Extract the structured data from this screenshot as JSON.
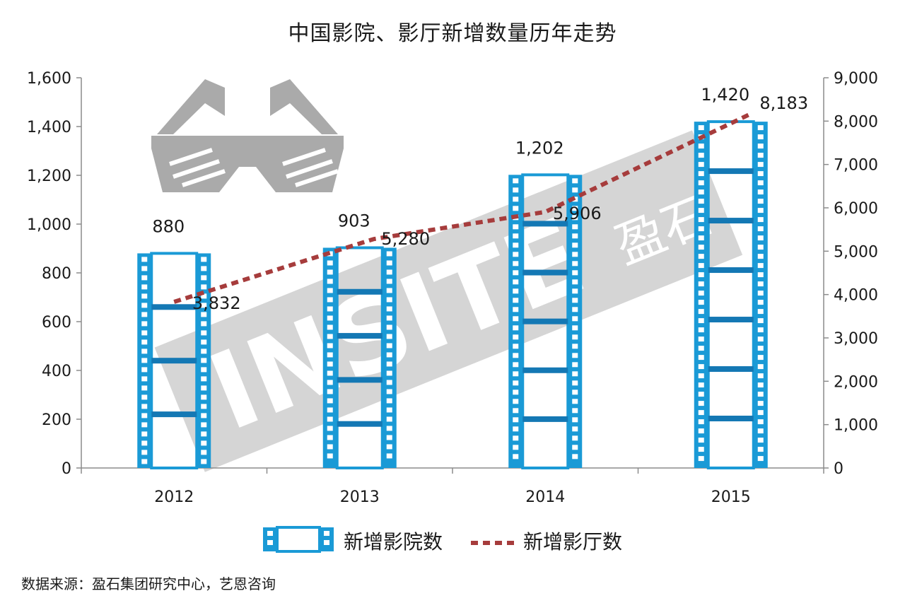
{
  "chart_data": {
    "type": "bar",
    "title": "中国影院、影厅新增数量历年走势",
    "categories": [
      "2012",
      "2013",
      "2014",
      "2015"
    ],
    "series": [
      {
        "name": "新增影院数",
        "type": "bar",
        "axis": "left",
        "values": [
          880,
          903,
          1202,
          1420
        ],
        "labels": [
          "880",
          "903",
          "1,202",
          "1,420"
        ]
      },
      {
        "name": "新增影厅数",
        "type": "line",
        "axis": "right",
        "values": [
          3832,
          5280,
          5906,
          8183
        ],
        "labels": [
          "3,832",
          "5,280",
          "5,906",
          "8,183"
        ]
      }
    ],
    "y_left": {
      "min": 0,
      "max": 1600,
      "ticks": [
        0,
        200,
        400,
        600,
        800,
        1000,
        1200,
        1400,
        1600
      ],
      "tick_labels": [
        "0",
        "200",
        "400",
        "600",
        "800",
        "1,000",
        "1,200",
        "1,400",
        "1,600"
      ]
    },
    "y_right": {
      "min": 0,
      "max": 9000,
      "ticks": [
        0,
        1000,
        2000,
        3000,
        4000,
        5000,
        6000,
        7000,
        8000,
        9000
      ],
      "tick_labels": [
        "0",
        "1,000",
        "2,000",
        "3,000",
        "4,000",
        "5,000",
        "6,000",
        "7,000",
        "8,000",
        "9,000"
      ]
    },
    "legend_position": "bottom",
    "grid": false
  },
  "source": "数据来源：盈石集团研究中心，艺恩咨询",
  "watermark": {
    "text": "INSITE",
    "cn_text": "盈石",
    "icon": "3d-glasses-icon"
  },
  "colors": {
    "bar": "#1a9ad6",
    "bar_dark": "#1478b4",
    "line": "#a63c3c",
    "axis": "#8c8c8c",
    "watermark": "#b4b4b4"
  }
}
